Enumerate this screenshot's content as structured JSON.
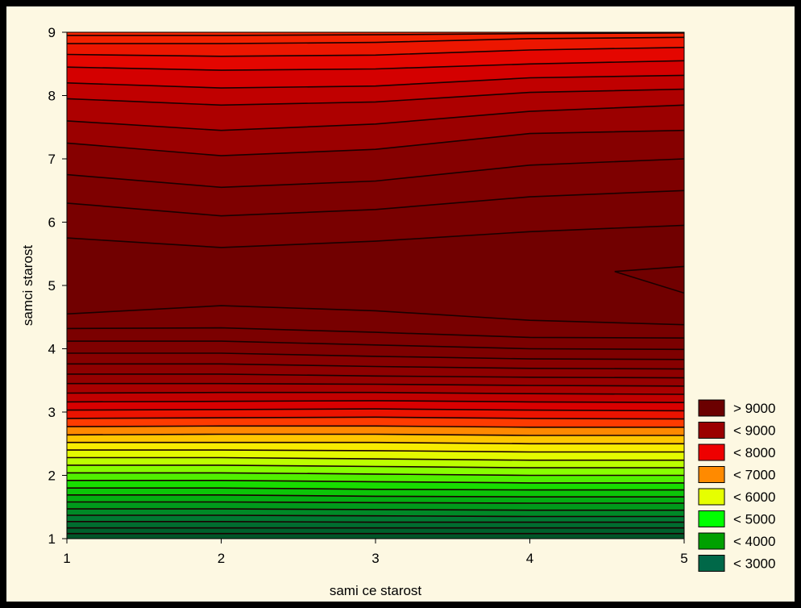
{
  "chart_data": {
    "type": "heatmap",
    "subtype": "filled-contour",
    "xlabel": "sami ce starost",
    "ylabel": "samci starost",
    "xlim": [
      1,
      5
    ],
    "ylim": [
      1,
      9
    ],
    "x_ticks": [
      "1",
      "2",
      "3",
      "4",
      "5"
    ],
    "y_ticks": [
      "1",
      "2",
      "3",
      "4",
      "5",
      "6",
      "7",
      "8",
      "9"
    ],
    "legend_position": "bottom-right",
    "legend": [
      {
        "label": "> 9000",
        "color": "#6b0000"
      },
      {
        "label": "< 9000",
        "color": "#9b0000"
      },
      {
        "label": "< 8000",
        "color": "#ee0000"
      },
      {
        "label": "< 7000",
        "color": "#ff8a00"
      },
      {
        "label": "< 6000",
        "color": "#e6ff00"
      },
      {
        "label": "< 5000",
        "color": "#00ff00"
      },
      {
        "label": "< 4000",
        "color": "#00a000"
      },
      {
        "label": "< 3000",
        "color": "#006848"
      }
    ],
    "value_profile": {
      "y": [
        1.0,
        1.5,
        2.0,
        2.5,
        3.0,
        3.5,
        4.0,
        4.5,
        5.0,
        5.5,
        6.0,
        6.5,
        7.0,
        7.5,
        8.0,
        8.5,
        9.0
      ],
      "value": [
        2700,
        4000,
        5200,
        6300,
        7800,
        8700,
        9000,
        9150,
        9300,
        9250,
        9100,
        9000,
        8900,
        8600,
        8300,
        7900,
        7500
      ]
    },
    "contour_lines_y_at_x": {
      "x": [
        1,
        2,
        3,
        4,
        5
      ],
      "lines": [
        [
          1.08,
          1.08,
          1.08,
          1.08,
          1.08
        ],
        [
          1.17,
          1.17,
          1.17,
          1.17,
          1.17
        ],
        [
          1.27,
          1.27,
          1.26,
          1.26,
          1.26
        ],
        [
          1.37,
          1.37,
          1.36,
          1.35,
          1.35
        ],
        [
          1.47,
          1.47,
          1.46,
          1.45,
          1.45
        ],
        [
          1.58,
          1.58,
          1.57,
          1.56,
          1.56
        ],
        [
          1.69,
          1.69,
          1.67,
          1.66,
          1.66
        ],
        [
          1.8,
          1.8,
          1.78,
          1.77,
          1.77
        ],
        [
          1.92,
          1.92,
          1.9,
          1.88,
          1.88
        ],
        [
          2.04,
          2.04,
          2.02,
          2.0,
          2.0
        ],
        [
          2.16,
          2.16,
          2.14,
          2.12,
          2.12
        ],
        [
          2.28,
          2.28,
          2.26,
          2.24,
          2.24
        ],
        [
          2.4,
          2.4,
          2.39,
          2.37,
          2.37
        ],
        [
          2.52,
          2.52,
          2.52,
          2.5,
          2.5
        ],
        [
          2.64,
          2.65,
          2.65,
          2.63,
          2.63
        ],
        [
          2.77,
          2.78,
          2.78,
          2.76,
          2.76
        ],
        [
          2.9,
          2.91,
          2.92,
          2.9,
          2.89
        ],
        [
          3.03,
          3.04,
          3.05,
          3.03,
          3.02
        ],
        [
          3.16,
          3.17,
          3.18,
          3.16,
          3.15
        ],
        [
          3.3,
          3.31,
          3.31,
          3.29,
          3.28
        ],
        [
          3.45,
          3.45,
          3.44,
          3.42,
          3.41
        ],
        [
          3.6,
          3.6,
          3.57,
          3.55,
          3.54
        ],
        [
          3.76,
          3.76,
          3.72,
          3.69,
          3.68
        ],
        [
          3.93,
          3.93,
          3.88,
          3.84,
          3.83
        ],
        [
          4.12,
          4.12,
          4.06,
          4.0,
          3.99
        ],
        [
          4.32,
          4.33,
          4.26,
          4.18,
          4.17
        ],
        [
          4.55,
          4.68,
          4.6,
          4.45,
          4.38
        ],
        [
          5.75,
          5.6,
          5.7,
          5.85,
          5.95
        ],
        [
          6.3,
          6.1,
          6.2,
          6.4,
          6.5
        ],
        [
          6.75,
          6.55,
          6.65,
          6.9,
          7.0
        ],
        [
          7.25,
          7.05,
          7.15,
          7.4,
          7.45
        ],
        [
          7.6,
          7.45,
          7.55,
          7.75,
          7.85
        ],
        [
          7.95,
          7.85,
          7.9,
          8.05,
          8.1
        ],
        [
          8.2,
          8.12,
          8.15,
          8.28,
          8.32
        ],
        [
          8.45,
          8.4,
          8.42,
          8.5,
          8.55
        ],
        [
          8.65,
          8.62,
          8.64,
          8.72,
          8.76
        ],
        [
          8.82,
          8.82,
          8.84,
          8.9,
          8.92
        ],
        [
          8.95,
          8.95,
          8.96,
          8.98,
          8.99
        ]
      ]
    }
  }
}
